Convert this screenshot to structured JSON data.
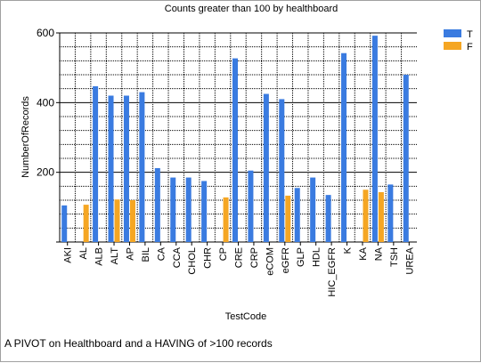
{
  "footnote": "A PIVOT on Healthboard and a HAVING of >100 records",
  "chart_data": {
    "type": "bar",
    "title": "Counts greater than 100 by healthboard",
    "xlabel": "TestCode",
    "ylabel": "NumberOfRecords",
    "ylim": [
      0,
      600
    ],
    "yticks": [
      200,
      400,
      600
    ],
    "grid": true,
    "legend_position": "top-right",
    "categories": [
      "AKI",
      "AL",
      "ALB",
      "ALT",
      "AP",
      "BIL",
      "CA",
      "CCA",
      "CHOL",
      "CHR",
      "CP",
      "CRE",
      "CRP",
      "eCOM",
      "eGFR",
      "GLP",
      "HDL",
      "HIC_EGFR",
      "K",
      "KA",
      "NA",
      "TSH",
      "UREA"
    ],
    "series": [
      {
        "name": "T",
        "color": "#3a7be0",
        "values": [
          105,
          null,
          447,
          420,
          420,
          430,
          212,
          185,
          185,
          175,
          null,
          527,
          205,
          425,
          410,
          155,
          185,
          135,
          542,
          null,
          592,
          165,
          480
        ]
      },
      {
        "name": "F",
        "color": "#f5a623",
        "values": [
          null,
          107,
          null,
          122,
          120,
          null,
          null,
          null,
          null,
          null,
          128,
          null,
          null,
          null,
          133,
          null,
          null,
          null,
          null,
          150,
          143,
          null,
          null
        ]
      }
    ]
  }
}
